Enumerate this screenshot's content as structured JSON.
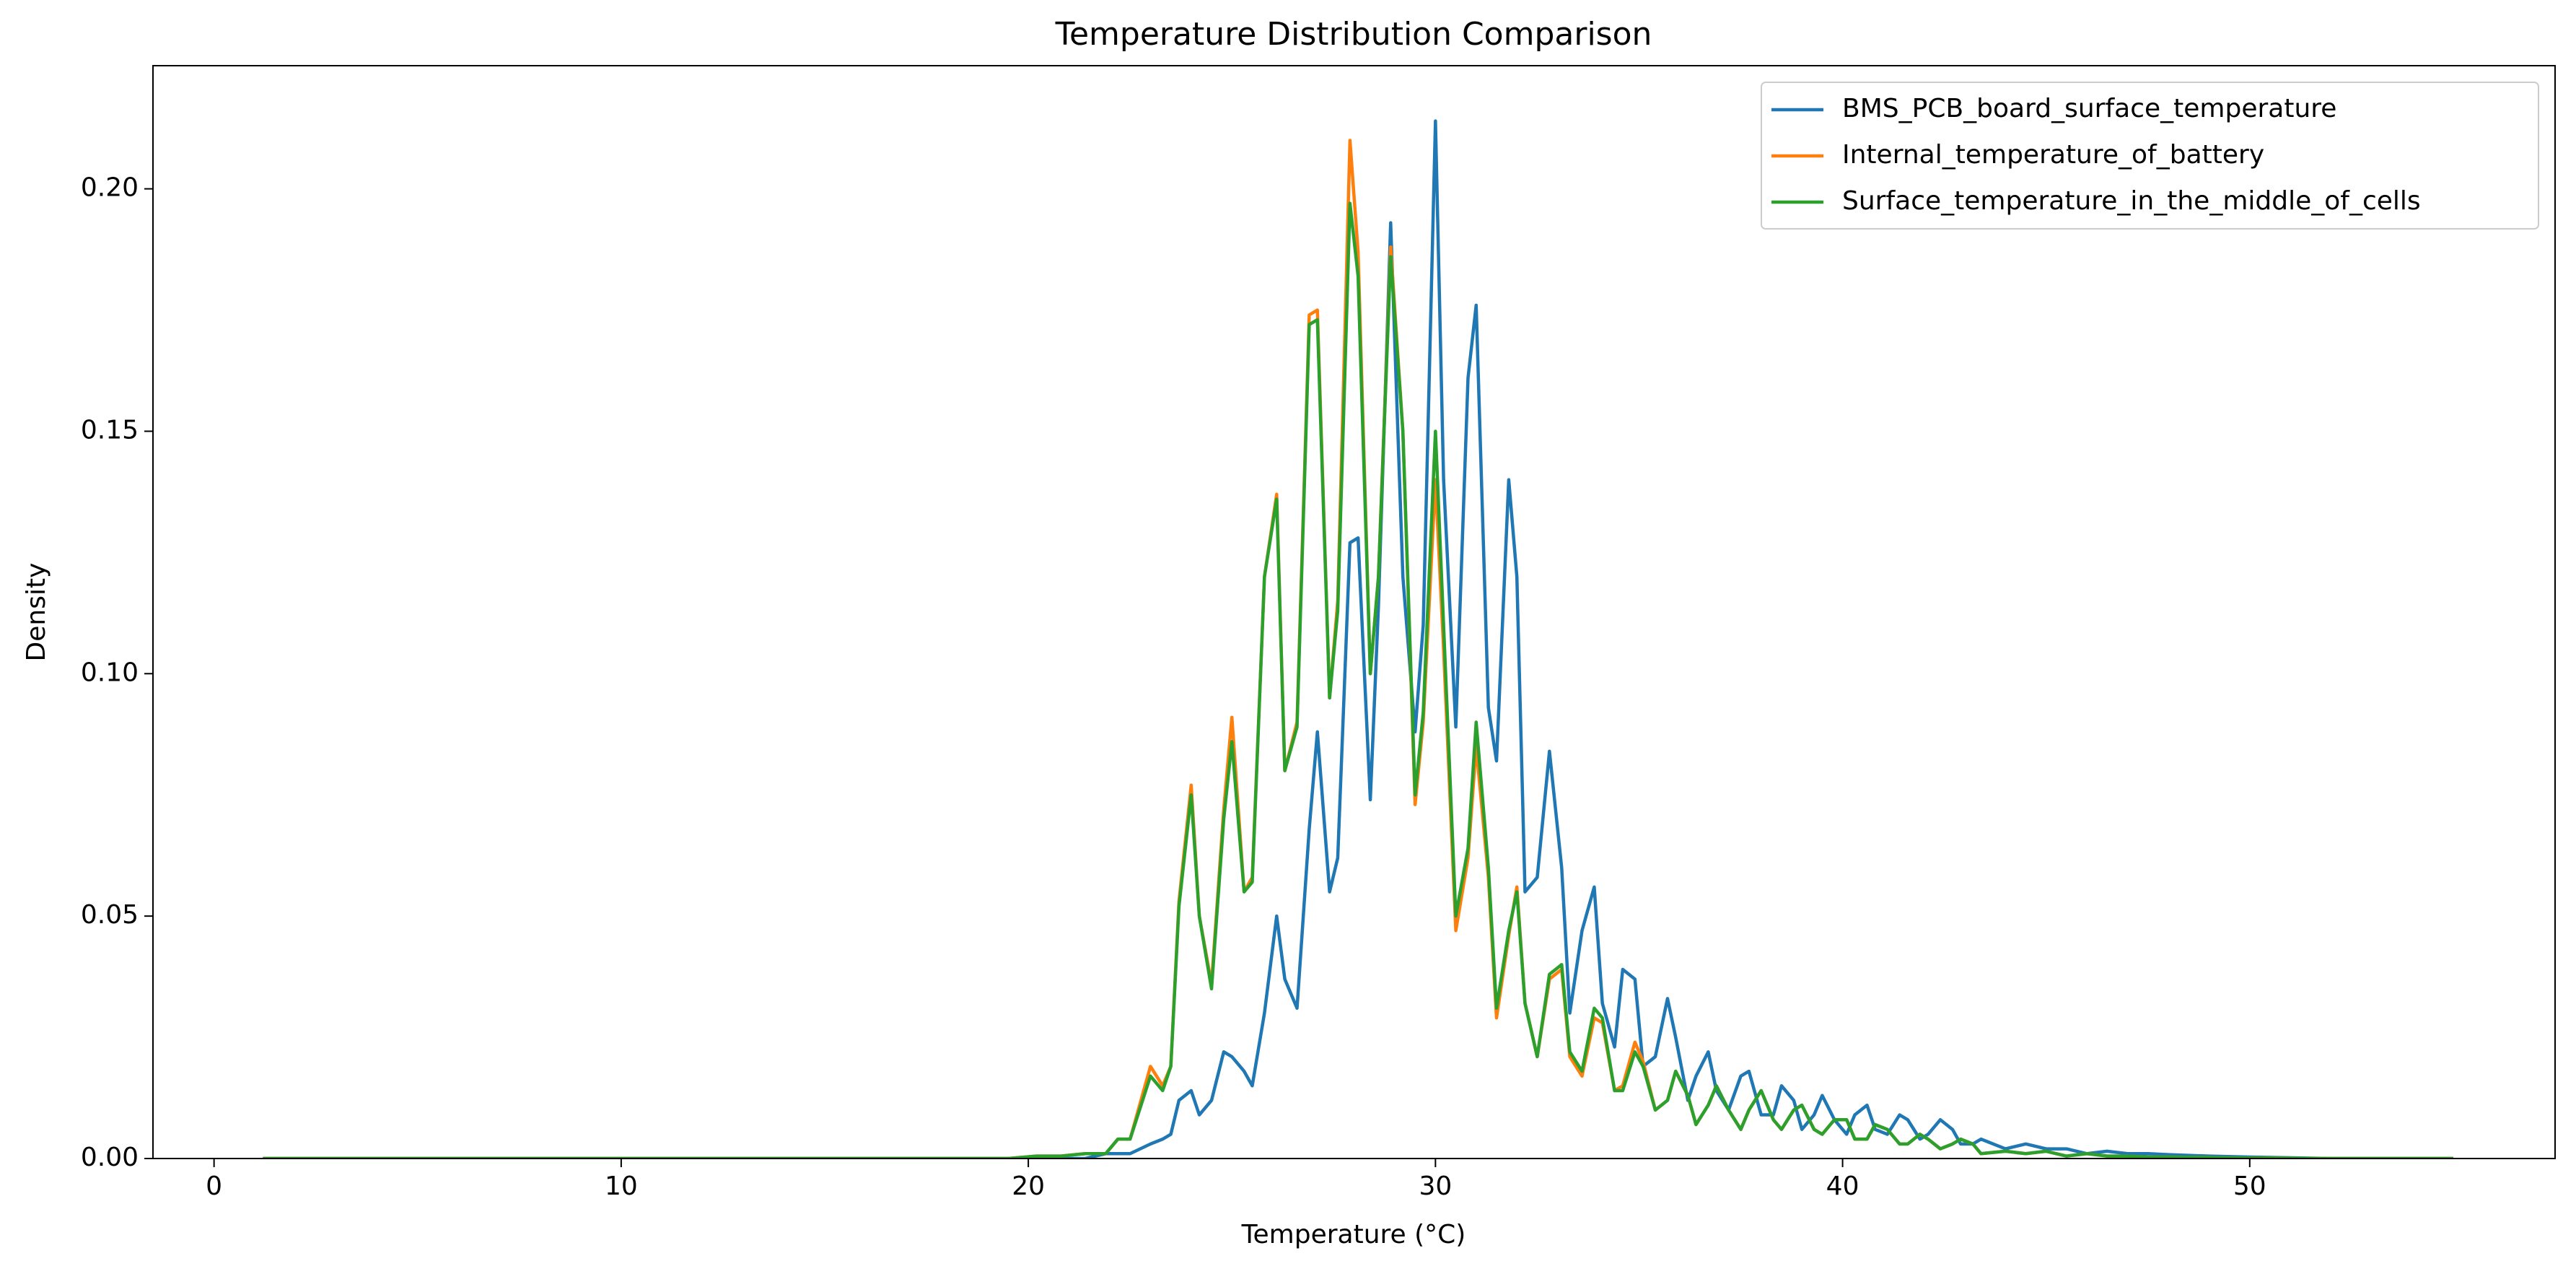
{
  "chart_data": {
    "type": "line",
    "title": "Temperature Distribution Comparison",
    "x_label": "Temperature (°C)",
    "y_label": "Density",
    "xlim": [
      -1.5,
      57.5
    ],
    "ylim": [
      0,
      0.2254
    ],
    "xticks": [
      0,
      10,
      20,
      30,
      40,
      50
    ],
    "yticks": [
      {
        "value": 0,
        "label": "0.00"
      },
      {
        "value": 0.05,
        "label": "0.05"
      },
      {
        "value": 0.1,
        "label": "0.10"
      },
      {
        "value": 0.15,
        "label": "0.15"
      },
      {
        "value": 0.2,
        "label": "0.20"
      }
    ],
    "legend": "upper right",
    "grid": false,
    "x": [
      1.2,
      5,
      10,
      15,
      19.5,
      20.2,
      20.8,
      21.4,
      21.9,
      22.2,
      22.5,
      23.0,
      23.3,
      23.5,
      23.7,
      24.0,
      24.2,
      24.5,
      24.8,
      25.0,
      25.3,
      25.5,
      25.8,
      26.1,
      26.3,
      26.6,
      26.9,
      27.1,
      27.4,
      27.6,
      27.9,
      28.1,
      28.4,
      28.6,
      28.9,
      29.2,
      29.5,
      29.7,
      30.0,
      30.2,
      30.5,
      30.8,
      31.0,
      31.3,
      31.5,
      31.8,
      32.0,
      32.2,
      32.5,
      32.8,
      33.1,
      33.3,
      33.6,
      33.9,
      34.1,
      34.4,
      34.6,
      34.9,
      35.1,
      35.4,
      35.7,
      35.9,
      36.2,
      36.4,
      36.7,
      36.9,
      37.2,
      37.5,
      37.7,
      38.0,
      38.3,
      38.5,
      38.8,
      39.0,
      39.3,
      39.5,
      39.8,
      40.1,
      40.3,
      40.6,
      40.8,
      41.1,
      41.4,
      41.6,
      41.9,
      42.1,
      42.4,
      42.7,
      42.9,
      43.2,
      43.4,
      44.0,
      44.5,
      45.0,
      45.5,
      46.0,
      46.5,
      47.0,
      47.5,
      48.0,
      49.0,
      50.0,
      52.0,
      55.0
    ],
    "series": [
      {
        "name": "BMS_PCB_board_surface_temperature",
        "color": "#1f77b4",
        "values": [
          0,
          0,
          0,
          0,
          0,
          0,
          0,
          0,
          0.001,
          0.001,
          0.001,
          0.003,
          0.004,
          0.005,
          0.012,
          0.014,
          0.009,
          0.012,
          0.022,
          0.021,
          0.018,
          0.015,
          0.03,
          0.05,
          0.037,
          0.031,
          0.068,
          0.088,
          0.055,
          0.062,
          0.127,
          0.128,
          0.074,
          0.114,
          0.193,
          0.12,
          0.088,
          0.11,
          0.214,
          0.14,
          0.089,
          0.161,
          0.176,
          0.093,
          0.082,
          0.14,
          0.12,
          0.055,
          0.058,
          0.084,
          0.06,
          0.03,
          0.047,
          0.056,
          0.032,
          0.023,
          0.039,
          0.037,
          0.019,
          0.021,
          0.033,
          0.025,
          0.012,
          0.017,
          0.022,
          0.014,
          0.01,
          0.017,
          0.018,
          0.009,
          0.009,
          0.015,
          0.012,
          0.006,
          0.009,
          0.013,
          0.008,
          0.005,
          0.009,
          0.011,
          0.006,
          0.005,
          0.009,
          0.008,
          0.004,
          0.005,
          0.008,
          0.006,
          0.003,
          0.003,
          0.004,
          0.002,
          0.003,
          0.002,
          0.002,
          0.001,
          0.0015,
          0.001,
          0.001,
          0.0008,
          0.0005,
          0.0003,
          0,
          0
        ]
      },
      {
        "name": "Internal_temperature_of_battery",
        "color": "#ff7f0e",
        "values": [
          0,
          0,
          0,
          0,
          0,
          0.0005,
          0.0005,
          0.001,
          0.001,
          0.004,
          0.004,
          0.019,
          0.015,
          0.019,
          0.053,
          0.077,
          0.05,
          0.036,
          0.072,
          0.091,
          0.055,
          0.058,
          0.12,
          0.137,
          0.08,
          0.09,
          0.174,
          0.175,
          0.095,
          0.115,
          0.21,
          0.187,
          0.1,
          0.12,
          0.188,
          0.15,
          0.073,
          0.09,
          0.14,
          0.105,
          0.047,
          0.062,
          0.085,
          0.058,
          0.029,
          0.046,
          0.056,
          0.032,
          0.021,
          0.037,
          0.039,
          0.021,
          0.017,
          0.029,
          0.028,
          0.014,
          0.015,
          0.024,
          0.02,
          0.01,
          0.012,
          0.018,
          0.013,
          0.007,
          0.011,
          0.015,
          0.01,
          0.006,
          0.01,
          0.014,
          0.008,
          0.006,
          0.01,
          0.011,
          0.006,
          0.005,
          0.008,
          0.008,
          0.004,
          0.004,
          0.007,
          0.006,
          0.003,
          0.003,
          0.005,
          0.004,
          0.002,
          0.003,
          0.004,
          0.003,
          0.001,
          0.0015,
          0.001,
          0.0015,
          0.0005,
          0.001,
          0.0005,
          0.0005,
          0.0003,
          0.0003,
          0.0002,
          0.0001,
          0,
          0
        ]
      },
      {
        "name": "Surface_temperature_in_the_middle_of_cells",
        "color": "#2ca02c",
        "values": [
          0,
          0,
          0,
          0,
          0,
          0.0005,
          0.0005,
          0.001,
          0.001,
          0.004,
          0.004,
          0.017,
          0.014,
          0.019,
          0.052,
          0.075,
          0.05,
          0.035,
          0.07,
          0.086,
          0.055,
          0.057,
          0.12,
          0.136,
          0.08,
          0.089,
          0.172,
          0.173,
          0.095,
          0.113,
          0.197,
          0.182,
          0.1,
          0.12,
          0.186,
          0.15,
          0.075,
          0.092,
          0.15,
          0.11,
          0.05,
          0.064,
          0.09,
          0.06,
          0.031,
          0.047,
          0.055,
          0.032,
          0.021,
          0.038,
          0.04,
          0.022,
          0.018,
          0.031,
          0.029,
          0.014,
          0.014,
          0.022,
          0.019,
          0.01,
          0.012,
          0.018,
          0.013,
          0.007,
          0.011,
          0.015,
          0.01,
          0.006,
          0.01,
          0.014,
          0.008,
          0.006,
          0.01,
          0.011,
          0.006,
          0.005,
          0.008,
          0.008,
          0.004,
          0.004,
          0.007,
          0.006,
          0.003,
          0.003,
          0.005,
          0.004,
          0.002,
          0.003,
          0.004,
          0.003,
          0.001,
          0.0015,
          0.001,
          0.0015,
          0.0005,
          0.001,
          0.0005,
          0.0005,
          0.0003,
          0.0003,
          0.0002,
          0.0001,
          0,
          0
        ]
      }
    ]
  }
}
